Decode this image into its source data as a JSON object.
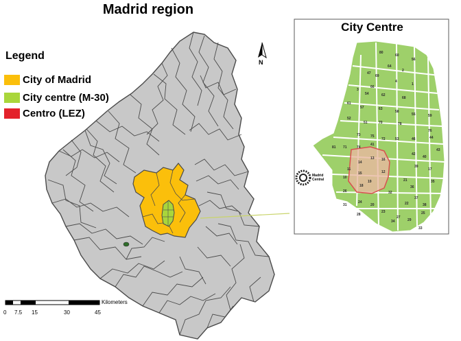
{
  "map": {
    "title": "Madrid region",
    "north_label": "N",
    "legend": {
      "title": "Legend",
      "items": [
        {
          "label": "City of Madrid",
          "color": "#fbbf0b"
        },
        {
          "label": "City centre (M-30)",
          "color": "#a9d63b"
        },
        {
          "label": "Centro (LEZ)",
          "color": "#e3222b"
        }
      ]
    },
    "inset": {
      "title": "City Centre",
      "station_label": "Madrid Central",
      "district_labels": [
        "80",
        "60",
        "56",
        "64",
        "2",
        "47",
        "69",
        "66",
        "4",
        "1",
        "3",
        "54",
        "62",
        "68",
        "61",
        "57",
        "63",
        "58",
        "55",
        "59",
        "52",
        "51",
        "70",
        "78",
        "76",
        "73",
        "75",
        "72",
        "53",
        "46",
        "44",
        "43",
        "71",
        "74",
        "41",
        "42",
        "40",
        "81",
        "13",
        "16",
        "14",
        "11",
        "15",
        "12",
        "39",
        "17",
        "10",
        "19",
        "21",
        "36",
        "35",
        "37",
        "38",
        "18",
        "26",
        "24",
        "32",
        "20",
        "23",
        "22",
        "25",
        "31",
        "28",
        "27",
        "29",
        "33",
        "34"
      ]
    },
    "scale_bar": {
      "unit": "Kilometers",
      "ticks": [
        "0",
        "7.5",
        "15",
        "30",
        "45"
      ]
    },
    "colors": {
      "region_fill": "#c8c8c8",
      "border": "#4a4a4a",
      "city": "#fbbf0b",
      "centre": "#a9d63b",
      "inset_green": "#9ed06a",
      "lez_fill": "#e8b8a0",
      "lez_border": "#d94f4f"
    }
  }
}
